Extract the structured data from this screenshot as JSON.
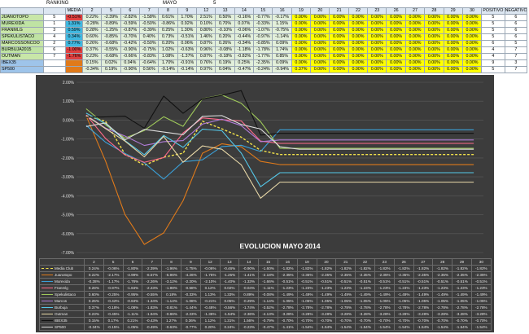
{
  "header": {
    "ranking": "RANKING",
    "media": "MEDIA",
    "mayo": "MAYO",
    "num": "5"
  },
  "day_headers": [
    "2",
    "5",
    "6",
    "7",
    "8",
    "9",
    "12",
    "13",
    "14",
    "15",
    "16",
    "19",
    "20",
    "21",
    "22",
    "23",
    "26",
    "27",
    "28",
    "29",
    "30"
  ],
  "pos_header": "POSITIVO",
  "neg_header": "NEGATIVO",
  "rows": [
    {
      "name": "JUANOTOPO",
      "rank": "5",
      "media": "-0.51%",
      "mcolor": "#e04040",
      "ncolor": "#c8e6a8",
      "values": [
        "0.22%",
        "-2.39%",
        "-2.82%",
        "-1.58%",
        "0.61%",
        "1.70%",
        "2.51%",
        "0.50%",
        "-0.16%",
        "-0.77%",
        "-0.17%",
        "0.00%",
        "0.00%",
        "0.00%",
        "0.00%",
        "0.00%",
        "0.00%",
        "0.00%",
        "0.00%",
        "0.00%",
        "0.00%"
      ],
      "pos": "5",
      "neg": "6"
    },
    {
      "name": "MUREXIDA",
      "rank": "1",
      "media": "1.31%",
      "mcolor": "#40b8e0",
      "ncolor": "#bfe3a3",
      "values": [
        "-0.28%",
        "-0.89%",
        "-0.59%",
        "-0.50%",
        "-0.86%",
        "0.92%",
        "0.10%",
        "0.70%",
        "0.07%",
        "-0.33%",
        "1.15%",
        "0.00%",
        "0.00%",
        "0.00%",
        "0.00%",
        "0.00%",
        "0.00%",
        "0.00%",
        "0.00%",
        "0.00%",
        "0.00%"
      ],
      "pos": "5",
      "neg": "6"
    },
    {
      "name": "FRANMLG",
      "rank": "3",
      "media": "0.59%",
      "mcolor": "#40b8e0",
      "ncolor": "#c8e6a8",
      "values": [
        "0.28%",
        "-1.25%",
        "-0.87%",
        "-0.39%",
        "0.25%",
        "1.30%",
        "0.80%",
        "-0.10%",
        "-0.06%",
        "-1.07%",
        "-0.75%",
        "0.00%",
        "0.00%",
        "0.00%",
        "0.00%",
        "0.00%",
        "0.00%",
        "0.00%",
        "0.00%",
        "0.00%",
        "0.00%"
      ],
      "pos": "5",
      "neg": "6"
    },
    {
      "name": "SPEKULISTACO",
      "rank": "4",
      "media": "0.34%",
      "mcolor": "#40b8e0",
      "ncolor": "#bfe3a3",
      "values": [
        "0.60%",
        "-0.85%",
        "-0.70%",
        "0.40%",
        "0.73%",
        "-0.51%",
        "1.46%",
        "0.20%",
        "-0.44%",
        "-0.97%",
        "-1.14%",
        "0.00%",
        "0.00%",
        "0.00%",
        "0.00%",
        "0.00%",
        "0.00%",
        "0.00%",
        "0.00%",
        "0.00%",
        "0.00%"
      ],
      "pos": "5",
      "neg": "6"
    },
    {
      "name": "MARCOSSONCOO",
      "rank": "2",
      "media": "0.77%",
      "mcolor": "#40b8e0",
      "ncolor": "#c8e6a8",
      "values": [
        "0.26%",
        "-0.68%",
        "-0.42%",
        "-0.50%",
        "0.20%",
        "0.06%",
        "0.87%",
        "0.26%",
        "-0.34%",
        "-0.85%",
        "0.09%",
        "0.00%",
        "0.00%",
        "0.00%",
        "0.00%",
        "0.00%",
        "0.00%",
        "0.00%",
        "0.00%",
        "0.00%",
        "0.00%"
      ],
      "pos": "6",
      "neg": "5"
    },
    {
      "name": "BURBUJA2015",
      "rank": "6",
      "media": "-1.00%",
      "mcolor": "#e04040",
      "ncolor": "#bfe3a3",
      "values": [
        "0.37%",
        "-0.55%",
        "-0.90%",
        "-0.75%",
        "1.02%",
        "-0.63%",
        "0.96%",
        "-0.08%",
        "-1.18%",
        "-1.78%",
        "1.74%",
        "0.00%",
        "0.00%",
        "0.00%",
        "0.00%",
        "0.00%",
        "0.00%",
        "0.00%",
        "0.00%",
        "0.00%",
        "0.00%"
      ],
      "pos": "4",
      "neg": "7"
    },
    {
      "name": "OUTMAN",
      "rank": "7",
      "media": "-1.76%",
      "mcolor": "#e04040",
      "ncolor": "#c8e6a8",
      "values": [
        "0.23%",
        "-0.68%",
        "-0.66%",
        "-0.83%",
        "1.08%",
        "-1.37%",
        "0.87%",
        "-0.18%",
        "-0.82%",
        "-1.77%",
        "0.85%",
        "0.00%",
        "0.00%",
        "0.00%",
        "0.00%",
        "0.00%",
        "0.00%",
        "0.00%",
        "0.00%",
        "0.00%",
        "0.00%"
      ],
      "pos": "4",
      "neg": "7"
    },
    {
      "name": "IBEX35",
      "rank": "",
      "media": "",
      "mcolor": "#e07a1a",
      "ncolor": "#9ec4ea",
      "values": [
        "0.15%",
        "0.02%",
        "0.04%",
        "-0.64%",
        "1.70%",
        "-0.91%",
        "0.76%",
        "0.19%",
        "0.25%",
        "-2.35%",
        "0.09%",
        "0.00%",
        "0.00%",
        "0.00%",
        "0.00%",
        "0.00%",
        "0.00%",
        "0.00%",
        "0.00%",
        "0.00%",
        "0.00%"
      ],
      "pos": "9",
      "neg": "3"
    },
    {
      "name": "SP500",
      "rank": "",
      "media": "",
      "mcolor": "#e07a1a",
      "ncolor": "#9ec4ea",
      "values": [
        "-0.34%",
        "0.19%",
        "-0.90%",
        "0.56%",
        "-0.14%",
        "-0.14%",
        "0.97%",
        "0.04%",
        "-0.47%",
        "-0.24%",
        "-0.94%",
        "0.37%",
        "0.00%",
        "0.00%",
        "0.00%",
        "0.00%",
        "0.00%",
        "0.00%",
        "0.00%",
        "0.00%",
        "0.00%"
      ],
      "pos": "5",
      "neg": "7"
    }
  ],
  "chart_data": {
    "type": "line",
    "title": "EVOLUCION MAYO 2014",
    "x": [
      "2",
      "5",
      "6",
      "7",
      "8",
      "9",
      "12",
      "13",
      "14",
      "15",
      "16",
      "19",
      "20",
      "21",
      "22",
      "23",
      "26",
      "27",
      "28",
      "29",
      "30"
    ],
    "ylim": [
      -7,
      2
    ],
    "y_ticks": [
      "2.00%",
      "1.00%",
      "0.00%",
      "-1.00%",
      "-2.00%",
      "-3.00%",
      "-4.00%",
      "-5.00%",
      "-6.00%",
      "-7.00%"
    ],
    "grid": true,
    "legend": "table-below",
    "series": [
      {
        "name": "Media Club",
        "color": "#f2e24a",
        "dashed": true,
        "values": [
          0.24,
          -0.06,
          -1.8,
          -2.39,
          -1.96,
          -1.75,
          -0.06,
          -0.46,
          -0.9,
          -1.6,
          -1.82,
          -1.82,
          -1.82,
          -1.82,
          -1.82,
          -1.82,
          -1.82,
          -1.82,
          -1.82,
          -1.82,
          -1.82
        ],
        "labels": [
          "0.24%",
          "-0.06%",
          "-1.80%",
          "-2.39%",
          "-1.96%",
          "-1.75%",
          "-0.06%",
          "-0.46%",
          "-0.90%",
          "-1.60%",
          "-1.82%",
          "-1.82%",
          "-1.82%",
          "-1.82%",
          "-1.82%",
          "-1.82%",
          "-1.82%",
          "-1.82%",
          "-1.82%",
          "-1.82%",
          "-1.82%"
        ]
      },
      {
        "name": "Juanotopo",
        "color": "#e07a1a",
        "values": [
          0.22,
          -2.17,
          -4.99,
          -6.57,
          -5.96,
          -4.26,
          -1.75,
          -1.25,
          -1.41,
          -2.18,
          -2.35,
          -2.35,
          -2.35,
          -2.35,
          -2.35,
          -2.35,
          -2.35,
          -2.35,
          -2.35,
          -2.35,
          -2.35
        ],
        "labels": [
          "0.22%",
          "-2.17%",
          "-4.99%",
          "-6.57%",
          "-5.96%",
          "-4.26%",
          "-1.75%",
          "-1.25%",
          "-1.41%",
          "-2.18%",
          "-2.35%",
          "-2.35%",
          "-2.35%",
          "-2.35%",
          "-2.35%",
          "-2.35%",
          "-2.35%",
          "-2.35%",
          "-2.35%",
          "-2.35%",
          "-2.35%"
        ]
      },
      {
        "name": "Murexida",
        "color": "#3aa0d8",
        "values": [
          -0.28,
          -1.17,
          -1.76,
          -2.26,
          -3.12,
          -2.2,
          -2.1,
          -1.4,
          -1.33,
          -1.66,
          -0.51,
          -0.51,
          -0.51,
          -0.51,
          -0.51,
          -0.51,
          -0.51,
          -0.51,
          -0.51,
          -0.51,
          -0.51
        ],
        "labels": [
          "-0.28%",
          "-1.17%",
          "-1.76%",
          "-2.26%",
          "-3.12%",
          "-2.20%",
          "-2.10%",
          "-1.40%",
          "-1.33%",
          "-1.66%",
          "-0.51%",
          "-0.51%",
          "-0.51%",
          "-0.51%",
          "-0.51%",
          "-0.51%",
          "-0.51%",
          "-0.51%",
          "-0.51%",
          "-0.51%",
          "-0.51%"
        ]
      },
      {
        "name": "Franmlg",
        "color": "#ff6a8a",
        "values": [
          0.28,
          -0.97,
          -1.84,
          -2.23,
          -1.98,
          -0.68,
          0.12,
          0.02,
          -0.04,
          -1.11,
          -1.23,
          -1.23,
          -1.23,
          -1.23,
          -1.23,
          -1.23,
          -1.23,
          -1.23,
          -1.23,
          -1.23,
          -1.23
        ],
        "labels": [
          "0.28%",
          "-0.97%",
          "-1.84%",
          "-2.23%",
          "-1.98%",
          "-0.68%",
          "0.12%",
          "0.02%",
          "-0.04%",
          "-1.11%",
          "-1.23%",
          "-1.23%",
          "-1.23%",
          "-1.23%",
          "-1.23%",
          "-1.23%",
          "-1.23%",
          "-1.23%",
          "-1.23%",
          "-1.23%",
          "-1.23%"
        ]
      },
      {
        "name": "Spekulistaco",
        "color": "#9fc95a",
        "values": [
          0.6,
          -0.25,
          -0.95,
          -0.55,
          0.18,
          -0.33,
          1.13,
          1.33,
          0.89,
          -0.08,
          -1.49,
          -1.49,
          -1.49,
          -1.49,
          -1.49,
          -1.49,
          -1.49,
          -1.49,
          -1.49,
          -1.49,
          -1.49
        ],
        "labels": [
          "0.60%",
          "-0.25%",
          "-0.95%",
          "-0.55%",
          "0.18%",
          "-0.33%",
          "1.13%",
          "1.33%",
          "0.89%",
          "-0.08%",
          "-1.49%",
          "-1.49%",
          "-1.49%",
          "-1.49%",
          "-1.49%",
          "-1.49%",
          "-1.49%",
          "-1.49%",
          "-1.49%",
          "-1.49%",
          "-1.49%"
        ]
      },
      {
        "name": "Marcos",
        "color": "#b07cd8",
        "values": [
          0.26,
          -0.42,
          -0.84,
          -1.34,
          -1.14,
          -1.08,
          -0.21,
          0.05,
          -0.29,
          -1.14,
          -1.05,
          -1.05,
          -1.05,
          -1.05,
          -1.05,
          -1.05,
          -1.05,
          -1.05,
          -1.05,
          -1.05,
          -1.05
        ],
        "labels": [
          "0.26%",
          "-0.42%",
          "-0.84%",
          "-1.34%",
          "-1.14%",
          "-1.08%",
          "-0.21%",
          "0.05%",
          "-0.29%",
          "-1.14%",
          "-1.05%",
          "-1.05%",
          "-1.05%",
          "-1.05%",
          "-1.05%",
          "-1.05%",
          "-1.05%",
          "-1.05%",
          "-1.05%",
          "-1.05%",
          "-1.05%"
        ]
      },
      {
        "name": "Burbuja",
        "color": "#55c7e8",
        "values": [
          0.37,
          -0.18,
          -1.08,
          -1.83,
          -0.81,
          -1.44,
          -0.48,
          -0.56,
          -1.74,
          -3.52,
          -2.78,
          -2.78,
          -2.78,
          -2.78,
          -2.78,
          -2.78,
          -2.78,
          -2.78,
          -2.78,
          -2.78,
          -2.78
        ],
        "labels": [
          "0.37%",
          "-0.18%",
          "-1.08%",
          "-1.83%",
          "-0.81%",
          "-1.44%",
          "-0.48%",
          "-0.56%",
          "-1.74%",
          "-3.52%",
          "-2.78%",
          "-2.78%",
          "-2.78%",
          "-2.78%",
          "-2.78%",
          "-2.78%",
          "-2.78%",
          "-2.78%",
          "-2.78%",
          "-2.78%",
          "-2.78%"
        ]
      },
      {
        "name": "Outman",
        "color": "#e9d9a8",
        "values": [
          0.23,
          -0.45,
          -1.11,
          -1.94,
          -0.86,
          -2.23,
          -1.36,
          -1.54,
          -2.36,
          -4.13,
          -3.28,
          -3.28,
          -3.28,
          -3.28,
          -3.28,
          -3.28,
          -3.28,
          -3.28,
          -3.28,
          -3.28,
          -3.28
        ],
        "labels": [
          "0.23%",
          "-0.45%",
          "-1.11%",
          "-1.94%",
          "-0.86%",
          "-2.23%",
          "-1.36%",
          "-1.54%",
          "-2.36%",
          "-4.13%",
          "-3.28%",
          "-3.28%",
          "-3.28%",
          "-3.28%",
          "-3.28%",
          "-3.28%",
          "-3.28%",
          "-3.28%",
          "-3.28%",
          "-3.28%",
          "-3.28%"
        ]
      },
      {
        "name": "IBEX35",
        "color": "#111111",
        "values": [
          0.15,
          0.17,
          0.21,
          -0.43,
          1.27,
          0.36,
          1.12,
          1.31,
          1.56,
          -0.79,
          -0.7,
          -0.7,
          -0.7,
          -0.7,
          -0.7,
          -0.7,
          -0.7,
          -0.7,
          -0.7,
          -0.7,
          -0.7
        ],
        "labels": [
          "0.15%",
          "0.17%",
          "0.21%",
          "-0.43%",
          "1.27%",
          "0.36%",
          "1.12%",
          "1.31%",
          "1.56%",
          "-0.79%",
          "-0.70%",
          "-0.70%",
          "-0.70%",
          "-0.70%",
          "-0.70%",
          "-0.70%",
          "-0.70%",
          "-0.70%",
          "-0.70%",
          "-0.70%",
          "-0.70%"
        ]
      },
      {
        "name": "SP500",
        "color": "#dcdcdc",
        "values": [
          -0.34,
          -0.15,
          -1.05,
          -0.49,
          -0.63,
          -0.77,
          0.2,
          0.24,
          -0.23,
          -0.47,
          -1.41,
          -1.54,
          -1.54,
          -1.54,
          -1.54,
          -1.54,
          -1.54,
          -1.54,
          -1.54,
          -1.54,
          -1.54
        ],
        "labels": [
          "-0.34%",
          "-0.15%",
          "-1.05%",
          "-0.49%",
          "-0.63%",
          "-0.77%",
          "0.20%",
          "0.24%",
          "-0.23%",
          "-0.47%",
          "-1.41%",
          "-1.54%",
          "-1.54%",
          "-1.54%",
          "-1.54%",
          "-1.54%",
          "-1.54%",
          "-1.54%",
          "-1.54%",
          "-1.54%",
          "-1.54%"
        ]
      }
    ]
  }
}
